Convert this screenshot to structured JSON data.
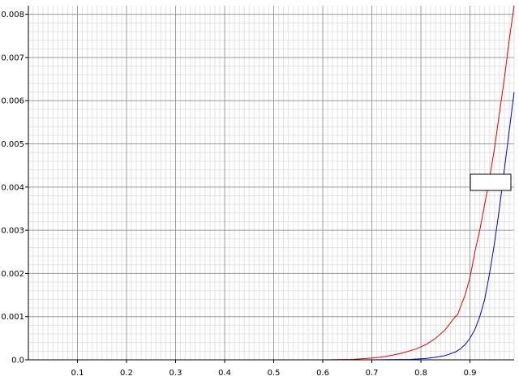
{
  "chart_data": {
    "type": "line",
    "title": "",
    "xlabel": "",
    "ylabel": "",
    "xlim": [
      0.0,
      0.99
    ],
    "ylim": [
      0.0,
      0.0082
    ],
    "x_ticks": [
      "0.1",
      "0.2",
      "0.3",
      "0.4",
      "0.5",
      "0.6",
      "0.7",
      "0.8",
      "0.9"
    ],
    "x_tick_values": [
      0.1,
      0.2,
      0.3,
      0.4,
      0.5,
      0.6,
      0.7,
      0.8,
      0.9
    ],
    "y_ticks": [
      "0.0",
      "0.001",
      "0.002",
      "0.003",
      "0.004",
      "0.005",
      "0.006",
      "0.007",
      "0.008"
    ],
    "y_tick_values": [
      0.0,
      0.001,
      0.002,
      0.003,
      0.004,
      0.005,
      0.006,
      0.007,
      0.008
    ],
    "grid": true,
    "minor_grid": true,
    "legend": "empty box at right",
    "series": [
      {
        "color": "#e00000",
        "x": [
          0.0,
          0.6,
          0.66,
          0.7,
          0.73,
          0.76,
          0.79,
          0.81,
          0.83,
          0.85,
          0.86,
          0.87,
          0.875,
          0.88,
          0.89,
          0.9,
          0.905,
          0.91,
          0.92,
          0.93,
          0.94,
          0.95,
          0.96,
          0.97,
          0.98,
          0.99
        ],
        "y": [
          0.0,
          0.0,
          1e-05,
          4e-05,
          8e-05,
          0.00015,
          0.00025,
          0.00035,
          0.0005,
          0.0007,
          0.00085,
          0.001,
          0.00105,
          0.0012,
          0.0015,
          0.0019,
          0.0022,
          0.0025,
          0.003,
          0.0036,
          0.0042,
          0.0049,
          0.0057,
          0.0065,
          0.0074,
          0.0082
        ]
      },
      {
        "color": "#0000d0",
        "x": [
          0.0,
          0.7,
          0.78,
          0.81,
          0.83,
          0.85,
          0.87,
          0.88,
          0.89,
          0.9,
          0.91,
          0.92,
          0.93,
          0.94,
          0.95,
          0.96,
          0.97,
          0.98,
          0.99
        ],
        "y": [
          0.0,
          0.0,
          1e-05,
          3e-05,
          6e-05,
          0.0001,
          0.00018,
          0.00025,
          0.00035,
          0.0005,
          0.0007,
          0.001,
          0.0014,
          0.002,
          0.0027,
          0.0035,
          0.0044,
          0.0053,
          0.0062
        ]
      }
    ]
  }
}
